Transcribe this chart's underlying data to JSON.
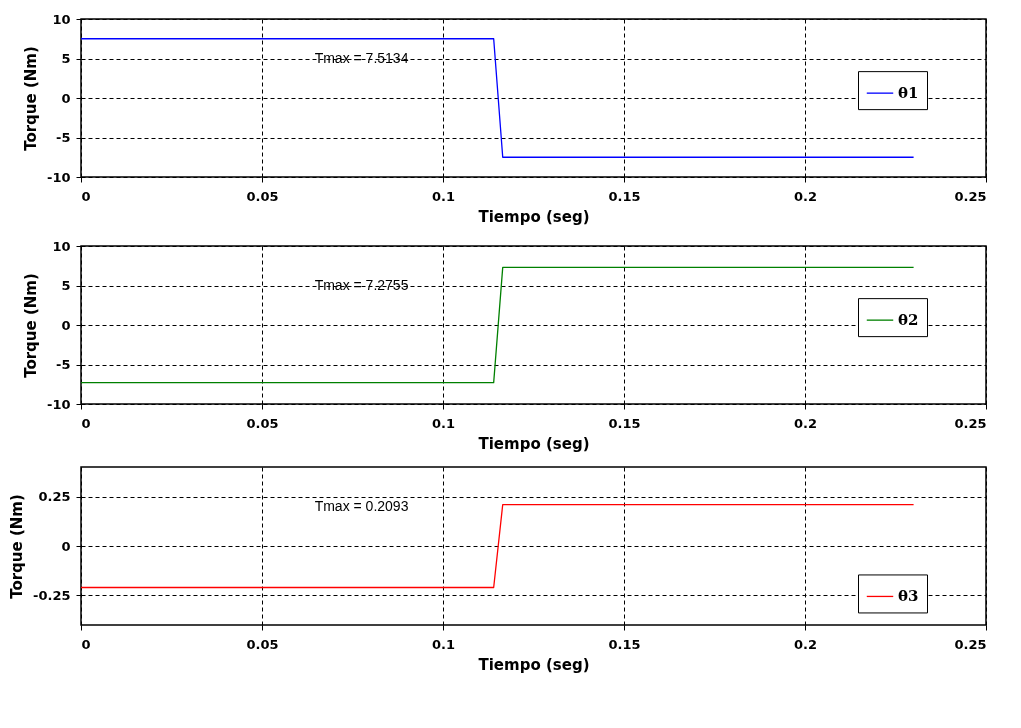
{
  "chart_data": [
    {
      "type": "line",
      "xlabel": "Tiempo (seg)",
      "ylabel": "Torque (Nm)",
      "annotations": [
        "Tmax =  7.5134"
      ],
      "xlim": [
        0,
        0.25
      ],
      "xticks": [
        0,
        0.05,
        0.1,
        0.15,
        0.2,
        0.25
      ],
      "ylim": [
        -10,
        10
      ],
      "yticks": [
        -10,
        -5,
        0,
        5,
        10
      ],
      "grid": true,
      "legend": "right",
      "series": [
        {
          "name": "θ1",
          "color": "#0000ff",
          "x": [
            0,
            0.114,
            0.1165,
            0.23
          ],
          "values": [
            7.5,
            7.5,
            -7.5,
            -7.5
          ]
        }
      ]
    },
    {
      "type": "line",
      "xlabel": "Tiempo (seg)",
      "ylabel": "Torque (Nm)",
      "annotations": [
        "Tmax = 7.2755"
      ],
      "xlim": [
        0,
        0.25
      ],
      "xticks": [
        0,
        0.05,
        0.1,
        0.15,
        0.2,
        0.25
      ],
      "ylim": [
        -10,
        10
      ],
      "yticks": [
        -10,
        -5,
        0,
        5,
        10
      ],
      "grid": true,
      "legend": "right",
      "series": [
        {
          "name": "θ2",
          "color": "#008000",
          "x": [
            0,
            0.114,
            0.1165,
            0.23
          ],
          "values": [
            -7.3,
            -7.3,
            7.3,
            7.3
          ]
        }
      ]
    },
    {
      "type": "line",
      "xlabel": "Tiempo (seg)",
      "ylabel": "Torque (Nm)",
      "annotations": [
        "Tmax = 0.2093"
      ],
      "xlim": [
        0,
        0.25
      ],
      "xticks": [
        0,
        0.05,
        0.1,
        0.15,
        0.2,
        0.25
      ],
      "ylim": [
        -0.4,
        0.4
      ],
      "yticks": [
        -0.25,
        0,
        0.25
      ],
      "grid": true,
      "legend": "bottom right",
      "series": [
        {
          "name": "θ3",
          "color": "#ff0000",
          "x": [
            0,
            0.114,
            0.1165,
            0.23
          ],
          "values": [
            -0.21,
            -0.21,
            0.21,
            0.21
          ]
        }
      ]
    }
  ]
}
